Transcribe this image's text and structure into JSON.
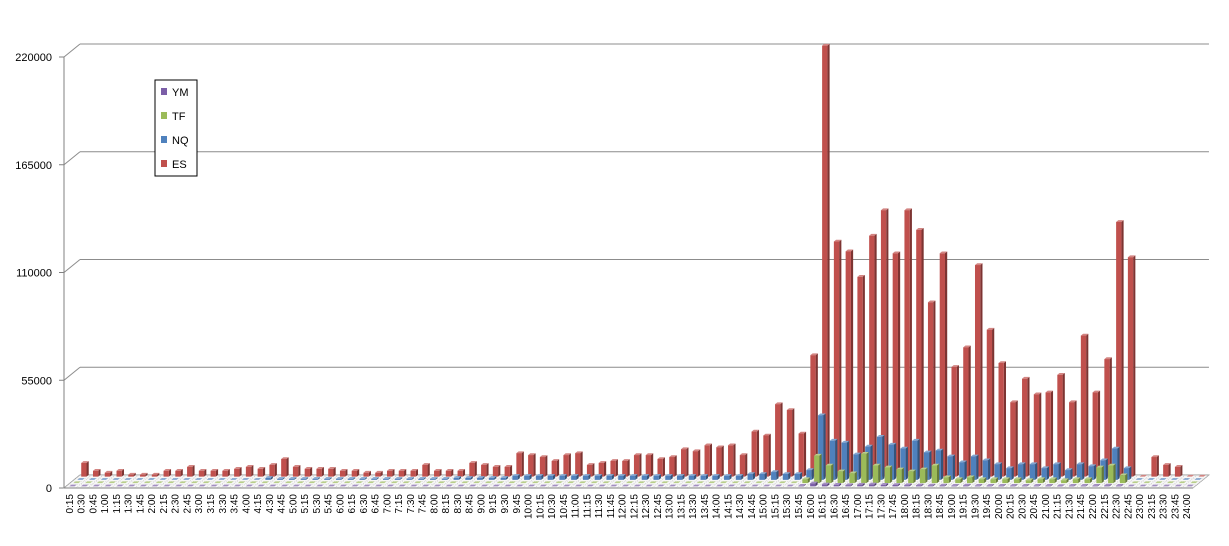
{
  "chart_data": {
    "type": "bar",
    "title": "",
    "xlabel": "",
    "ylabel": "",
    "ylim": [
      0,
      220000
    ],
    "yticks": [
      0,
      55000,
      110000,
      165000,
      220000
    ],
    "grid": true,
    "legend_position": "top-left",
    "categories": [
      "0:15",
      "0:30",
      "0:45",
      "1:00",
      "1:15",
      "1:30",
      "1:45",
      "2:00",
      "2:15",
      "2:30",
      "2:45",
      "3:00",
      "3:15",
      "3:30",
      "3:45",
      "4:00",
      "4:15",
      "4:30",
      "4:45",
      "5:00",
      "5:15",
      "5:30",
      "5:45",
      "6:00",
      "6:15",
      "6:30",
      "6:45",
      "7:00",
      "7:15",
      "7:30",
      "7:45",
      "8:00",
      "8:15",
      "8:30",
      "8:45",
      "9:00",
      "9:15",
      "9:30",
      "9:45",
      "10:00",
      "10:15",
      "10:30",
      "10:45",
      "11:00",
      "11:15",
      "11:30",
      "11:45",
      "12:00",
      "12:15",
      "12:30",
      "12:45",
      "13:00",
      "13:15",
      "13:30",
      "13:45",
      "14:00",
      "14:15",
      "14:30",
      "14:45",
      "15:00",
      "15:15",
      "15:30",
      "15:45",
      "16:00",
      "16:15",
      "16:30",
      "16:45",
      "17:00",
      "17:15",
      "17:30",
      "17:45",
      "18:00",
      "18:15",
      "18:30",
      "18:45",
      "19:00",
      "19:15",
      "19:30",
      "19:45",
      "20:00",
      "20:15",
      "20:30",
      "20:45",
      "21:00",
      "21:15",
      "21:30",
      "21:45",
      "22:00",
      "22:15",
      "22:30",
      "22:45",
      "23:00",
      "23:15",
      "23:30",
      "23:45",
      "24:00"
    ],
    "series": [
      {
        "name": "YM",
        "color": "#7b5ea7",
        "values": [
          0,
          0,
          0,
          0,
          0,
          0,
          0,
          0,
          0,
          0,
          0,
          0,
          0,
          0,
          0,
          0,
          0,
          0,
          0,
          0,
          0,
          0,
          0,
          0,
          0,
          0,
          0,
          0,
          0,
          0,
          0,
          0,
          0,
          0,
          0,
          0,
          0,
          0,
          0,
          0,
          0,
          0,
          0,
          0,
          0,
          0,
          0,
          0,
          0,
          0,
          0,
          0,
          0,
          0,
          0,
          0,
          0,
          0,
          0,
          0,
          0,
          0,
          300,
          1500,
          1000,
          800,
          600,
          900,
          1000,
          800,
          700,
          600,
          500,
          400,
          400,
          300,
          400,
          300,
          300,
          300,
          300,
          300,
          300,
          300,
          200,
          300,
          300,
          300,
          400,
          300,
          0,
          0,
          0,
          0,
          0,
          0
        ]
      },
      {
        "name": "TF",
        "color": "#9bbb59",
        "values": [
          0,
          0,
          0,
          0,
          0,
          0,
          0,
          0,
          0,
          0,
          0,
          0,
          0,
          0,
          0,
          0,
          0,
          0,
          0,
          0,
          0,
          0,
          0,
          0,
          0,
          0,
          0,
          0,
          0,
          0,
          0,
          0,
          0,
          0,
          0,
          0,
          0,
          0,
          0,
          0,
          0,
          0,
          0,
          0,
          0,
          0,
          0,
          0,
          0,
          0,
          0,
          0,
          0,
          0,
          0,
          0,
          0,
          0,
          0,
          0,
          0,
          0,
          2000,
          14000,
          9000,
          6000,
          5000,
          15000,
          9000,
          8000,
          7000,
          6000,
          7000,
          9000,
          3000,
          2000,
          3000,
          2000,
          2000,
          2000,
          2000,
          1500,
          2000,
          2000,
          1500,
          2000,
          2000,
          8000,
          9000,
          4000,
          0,
          0,
          0,
          0,
          0,
          0
        ]
      },
      {
        "name": "NQ",
        "color": "#4f81bd",
        "values": [
          0,
          0,
          0,
          0,
          0,
          0,
          0,
          0,
          0,
          0,
          0,
          0,
          0,
          0,
          0,
          0,
          1000,
          500,
          500,
          500,
          500,
          500,
          500,
          500,
          500,
          500,
          500,
          500,
          500,
          500,
          500,
          500,
          1000,
          1000,
          1000,
          1000,
          1000,
          2000,
          2000,
          2000,
          2000,
          2000,
          2000,
          2000,
          2000,
          2000,
          2000,
          2000,
          2000,
          2000,
          2000,
          2000,
          2000,
          2000,
          2000,
          2000,
          2000,
          3000,
          3000,
          4000,
          3000,
          3000,
          5000,
          33000,
          20000,
          19000,
          13000,
          17000,
          22000,
          18000,
          16000,
          20000,
          14000,
          15000,
          12000,
          9000,
          12000,
          10000,
          8000,
          6000,
          8000,
          8000,
          6000,
          8000,
          5000,
          8000,
          7000,
          10000,
          16000,
          6000,
          0,
          0,
          0,
          0,
          0,
          0
        ]
      },
      {
        "name": "ES",
        "color": "#c0504d",
        "values": [
          7000,
          3000,
          2000,
          3000,
          1000,
          1000,
          1000,
          3000,
          3000,
          5000,
          3000,
          3000,
          3000,
          4000,
          5000,
          4000,
          6000,
          9000,
          5000,
          4000,
          4000,
          4000,
          3000,
          3000,
          2000,
          2000,
          3000,
          3000,
          3000,
          6000,
          3000,
          3000,
          3000,
          7000,
          6000,
          5000,
          5000,
          12000,
          11000,
          10000,
          8000,
          11000,
          12000,
          6000,
          7000,
          8000,
          8000,
          11000,
          11000,
          9000,
          10000,
          14000,
          13000,
          16000,
          15000,
          16000,
          11000,
          23000,
          21000,
          37000,
          34000,
          22000,
          62000,
          220000,
          120000,
          115000,
          102000,
          123000,
          136000,
          114000,
          136000,
          126000,
          89000,
          114000,
          56000,
          66000,
          108000,
          75000,
          58000,
          38000,
          50000,
          42000,
          43000,
          52000,
          38000,
          72000,
          43000,
          60000,
          130000,
          112000,
          0,
          10000,
          6000,
          5000,
          0,
          0
        ]
      }
    ]
  },
  "legend": {
    "items": [
      {
        "name": "YM",
        "color": "#7b5ea7"
      },
      {
        "name": "TF",
        "color": "#9bbb59"
      },
      {
        "name": "NQ",
        "color": "#4f81bd"
      },
      {
        "name": "ES",
        "color": "#c0504d"
      }
    ]
  }
}
